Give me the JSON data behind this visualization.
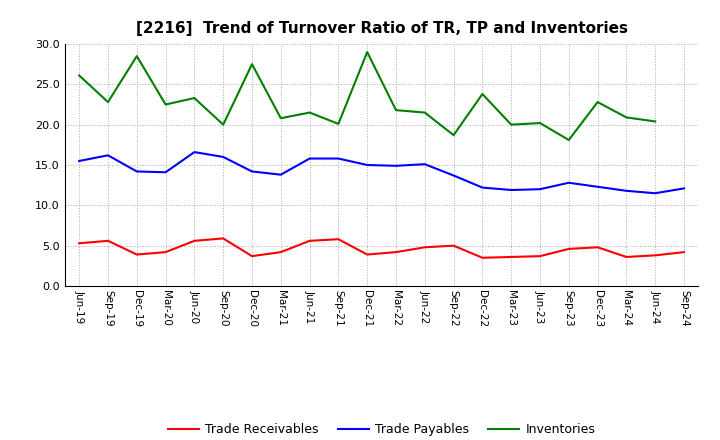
{
  "title": "[2216]  Trend of Turnover Ratio of TR, TP and Inventories",
  "x_labels": [
    "Jun-19",
    "Sep-19",
    "Dec-19",
    "Mar-20",
    "Jun-20",
    "Sep-20",
    "Dec-20",
    "Mar-21",
    "Jun-21",
    "Sep-21",
    "Dec-21",
    "Mar-22",
    "Jun-22",
    "Sep-22",
    "Dec-22",
    "Mar-23",
    "Jun-23",
    "Sep-23",
    "Dec-23",
    "Mar-24",
    "Jun-24",
    "Sep-24"
  ],
  "trade_receivables": [
    5.3,
    5.6,
    3.9,
    4.2,
    5.6,
    5.9,
    3.7,
    4.2,
    5.6,
    5.8,
    3.9,
    4.2,
    4.8,
    5.0,
    3.5,
    3.6,
    3.7,
    4.6,
    4.8,
    3.6,
    3.8,
    4.2
  ],
  "trade_payables": [
    15.5,
    16.2,
    14.2,
    14.1,
    16.6,
    16.0,
    14.2,
    13.8,
    15.8,
    15.8,
    15.0,
    14.9,
    15.1,
    13.7,
    12.2,
    11.9,
    12.0,
    12.8,
    12.3,
    11.8,
    11.5,
    12.1
  ],
  "inventories": [
    26.1,
    22.8,
    28.5,
    22.5,
    23.3,
    20.0,
    27.5,
    20.8,
    21.5,
    20.1,
    29.0,
    21.8,
    21.5,
    18.7,
    23.8,
    20.0,
    20.2,
    18.1,
    22.8,
    20.9,
    20.4,
    null
  ],
  "ylim": [
    0.0,
    30.0
  ],
  "yticks": [
    0.0,
    5.0,
    10.0,
    15.0,
    20.0,
    25.0,
    30.0
  ],
  "tr_color": "#ff0000",
  "tp_color": "#0000ff",
  "inv_color": "#008000",
  "tr_label": "Trade Receivables",
  "tp_label": "Trade Payables",
  "inv_label": "Inventories",
  "background_color": "#ffffff",
  "grid_color": "#aaaaaa"
}
